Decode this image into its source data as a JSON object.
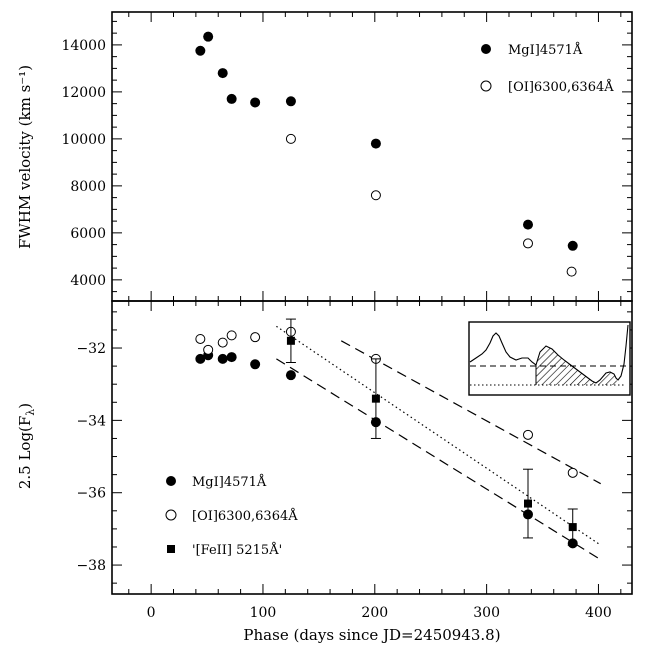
{
  "chart_data": [
    {
      "type": "scatter",
      "panel": "top",
      "ylabel": "FWHM velocity (km s⁻¹)",
      "xlim": [
        -35,
        430
      ],
      "ylim": [
        3100,
        15400
      ],
      "x_ticks": [
        0,
        100,
        200,
        300,
        400
      ],
      "y_ticks": [
        4000,
        6000,
        8000,
        10000,
        12000,
        14000
      ],
      "y_tick_labels": [
        "4000",
        "6000",
        "8000",
        "10000",
        "12000",
        "14000"
      ],
      "legend_position": "top-right",
      "series": [
        {
          "name": "MgI]4571Å",
          "marker": "filled-circle",
          "x": [
            44,
            51,
            64,
            72,
            93,
            125,
            201,
            337,
            377
          ],
          "y": [
            13750,
            14350,
            12800,
            11700,
            11550,
            11600,
            9800,
            6350,
            5450
          ]
        },
        {
          "name": "[OI]6300,6364Å",
          "marker": "open-circle",
          "x": [
            125,
            201,
            337,
            376
          ],
          "y": [
            10000,
            7600,
            5550,
            4350
          ]
        }
      ]
    },
    {
      "type": "scatter",
      "panel": "bottom",
      "xlabel": "Phase (days since JD=2450943.8)",
      "ylabel": "2.5 Log(F",
      "ylabel_sub": "λ",
      "ylabel_end": ")",
      "xlim": [
        -35,
        430
      ],
      "ylim": [
        -38.8,
        -30.7
      ],
      "x_ticks": [
        0,
        100,
        200,
        300,
        400
      ],
      "x_tick_labels": [
        "0",
        "100",
        "200",
        "300",
        "400"
      ],
      "y_ticks": [
        -38,
        -36,
        -34,
        -32
      ],
      "y_tick_labels": [
        "−38",
        "−36",
        "−34",
        "−32"
      ],
      "legend_position": "bottom-left",
      "series": [
        {
          "name": "MgI]4571Å",
          "marker": "filled-circle",
          "x": [
            44,
            51,
            64,
            72,
            93,
            125,
            201,
            337,
            377
          ],
          "y": [
            -32.3,
            -32.2,
            -32.3,
            -32.25,
            -32.45,
            -32.75,
            -34.05,
            -36.6,
            -37.4
          ]
        },
        {
          "name": "[OI]6300,6364Å",
          "marker": "open-circle",
          "x": [
            44,
            51,
            64,
            72,
            93,
            125,
            201,
            337,
            377
          ],
          "y": [
            -31.75,
            -32.05,
            -31.85,
            -31.65,
            -31.7,
            -31.55,
            -32.3,
            -34.4,
            -35.45
          ]
        },
        {
          "name": "'[FeII] 5215Å'",
          "marker": "filled-square",
          "x": [
            125,
            201,
            337,
            377
          ],
          "y": [
            -31.8,
            -33.4,
            -36.3,
            -36.95
          ],
          "y_err": [
            0.6,
            1.1,
            0.95,
            0.5
          ]
        }
      ],
      "lines": [
        {
          "style": "dashed",
          "x": [
            112,
            402
          ],
          "y": [
            -32.3,
            -37.85
          ]
        },
        {
          "style": "dashed",
          "x": [
            170,
            402
          ],
          "y": [
            -31.8,
            -35.75
          ]
        },
        {
          "style": "dotted",
          "x": [
            112,
            402
          ],
          "y": [
            -31.4,
            -37.45
          ]
        }
      ]
    }
  ]
}
